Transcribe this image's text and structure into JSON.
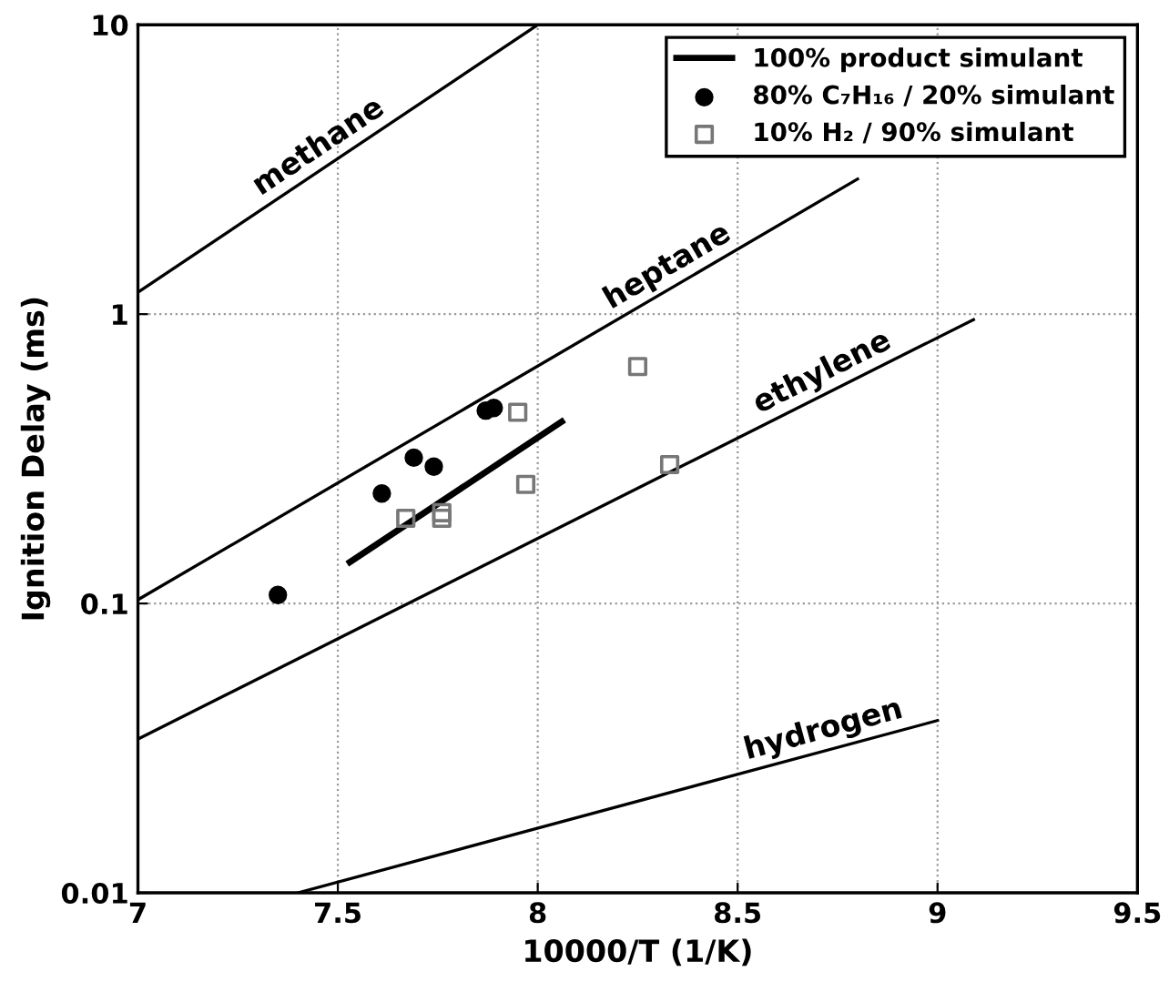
{
  "chart_data": {
    "type": "scatter",
    "xlabel": "10000/T (1/K)",
    "ylabel": "Ignition Delay (ms)",
    "log": "y",
    "xlim": [
      7,
      9.5
    ],
    "xticks": [
      7,
      7.5,
      8,
      8.5,
      9,
      9.5
    ],
    "ylim": [
      0.01,
      10
    ],
    "yticks": [
      0.01,
      0.1,
      1,
      10
    ],
    "grid": true,
    "legend": "top right",
    "series": [
      {
        "type": "line",
        "color": "#000000",
        "x": [
          7,
          8
        ],
        "values": [
          1.19,
          10
        ],
        "marker": "none",
        "line_style": "solid"
      },
      {
        "type": "line",
        "color": "#000000",
        "x": [
          7,
          8.8
        ],
        "values": [
          0.103,
          2.93
        ],
        "marker": "none",
        "line_style": "solid"
      },
      {
        "type": "line",
        "color": "#000000",
        "x": [
          7,
          9.09
        ],
        "values": [
          0.034,
          0.957
        ],
        "marker": "none",
        "line_style": "solid"
      },
      {
        "type": "line",
        "color": "#000000",
        "x": [
          7.4,
          9
        ],
        "values": [
          0.01,
          0.0394
        ],
        "marker": "none",
        "line_style": "solid"
      },
      {
        "type": "line",
        "name": "100% product simulant",
        "color": "#000000",
        "x": [
          7.53,
          8.06
        ],
        "values": [
          0.139,
          0.425
        ],
        "marker": "none",
        "line_style": "solid"
      },
      {
        "name": "80% C₇H₁₆ / 20% simulant",
        "color": "#000000",
        "marker": "circle",
        "x": [
          7.35,
          7.61,
          7.69,
          7.74,
          7.87,
          7.89
        ],
        "values": [
          0.107,
          0.24,
          0.319,
          0.297,
          0.464,
          0.474
        ]
      },
      {
        "name": "10% H₂ / 90% simulant",
        "color": "#777777",
        "marker": "square",
        "x": [
          7.67,
          7.76,
          7.76,
          7.95,
          7.97,
          8.25,
          8.33
        ],
        "values": [
          0.197,
          0.197,
          0.206,
          0.458,
          0.258,
          0.659,
          0.302
        ]
      }
    ],
    "annotations": [
      "methane",
      "heptane",
      "ethylene",
      "hydrogen"
    ]
  }
}
